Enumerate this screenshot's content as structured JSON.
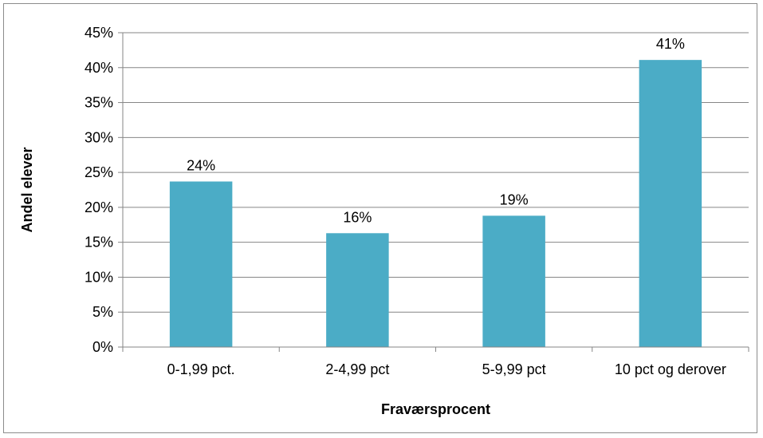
{
  "chart_data": {
    "type": "bar",
    "categories": [
      "0-1,99 pct.",
      "2-4,99 pct",
      "5-9,99 pct",
      "10 pct og derover"
    ],
    "values": [
      23.7,
      16.3,
      18.8,
      41.1
    ],
    "data_labels": [
      "24%",
      "16%",
      "19%",
      "41%"
    ],
    "xlabel": "Fraværsprocent",
    "ylabel": "Andel elever",
    "ylim": [
      0,
      45
    ],
    "y_ticks": [
      "0%",
      "5%",
      "10%",
      "15%",
      "20%",
      "25%",
      "30%",
      "35%",
      "40%",
      "45%"
    ],
    "grid": true,
    "legend": "none",
    "bar_color": "#4bacc6",
    "grid_color": "#868686"
  }
}
